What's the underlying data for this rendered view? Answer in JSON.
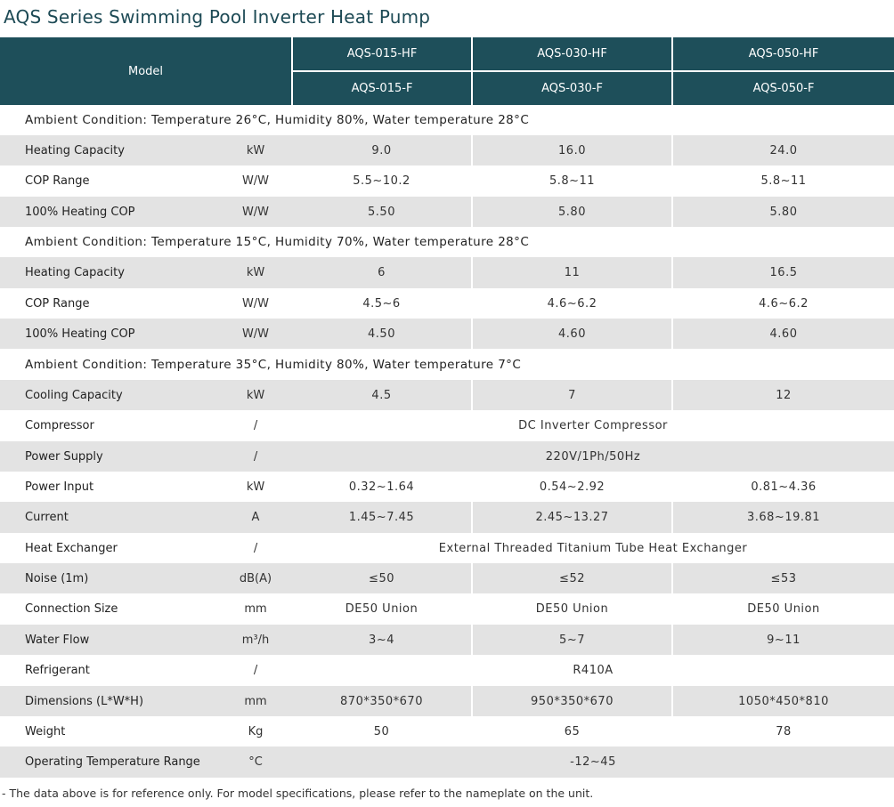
{
  "title": "AQS Series Swimming Pool Inverter Heat Pump",
  "header": {
    "model_label": "Model",
    "models_hf": [
      "AQS-015-HF",
      "AQS-030-HF",
      "AQS-050-HF"
    ],
    "models_f": [
      "AQS-015-F",
      "AQS-030-F",
      "AQS-050-F"
    ]
  },
  "sections": {
    "cond1": "Ambient Condition: Temperature 26°C, Humidity 80%, Water temperature 28°C",
    "cond2": "Ambient Condition: Temperature 15°C, Humidity 70%, Water temperature 28°C",
    "cond3": "Ambient Condition: Temperature 35°C, Humidity 80%, Water temperature 7°C"
  },
  "rows": {
    "hc1": {
      "label": "Heating Capacity",
      "unit": "kW",
      "v": [
        "9.0",
        "16.0",
        "24.0"
      ]
    },
    "cop1": {
      "label": "COP Range",
      "unit": "W/W",
      "v": [
        "5.5~10.2",
        "5.8~11",
        "5.8~11"
      ]
    },
    "hcop1": {
      "label": "100% Heating COP",
      "unit": "W/W",
      "v": [
        "5.50",
        "5.80",
        "5.80"
      ]
    },
    "hc2": {
      "label": "Heating Capacity",
      "unit": "kW",
      "v": [
        "6",
        "11",
        "16.5"
      ]
    },
    "cop2": {
      "label": "COP Range",
      "unit": "W/W",
      "v": [
        "4.5~6",
        "4.6~6.2",
        "4.6~6.2"
      ]
    },
    "hcop2": {
      "label": "100% Heating COP",
      "unit": "W/W",
      "v": [
        "4.50",
        "4.60",
        "4.60"
      ]
    },
    "cool": {
      "label": "Cooling Capacity",
      "unit": "kW",
      "v": [
        "4.5",
        "7",
        "12"
      ]
    },
    "comp": {
      "label": "Compressor",
      "unit": "/",
      "span": "DC Inverter Compressor"
    },
    "psu": {
      "label": "Power Supply",
      "unit": "/",
      "span": "220V/1Ph/50Hz"
    },
    "pin": {
      "label": "Power Input",
      "unit": "kW",
      "v": [
        "0.32~1.64",
        "0.54~2.92",
        "0.81~4.36"
      ]
    },
    "cur": {
      "label": "Current",
      "unit": "A",
      "v": [
        "1.45~7.45",
        "2.45~13.27",
        "3.68~19.81"
      ]
    },
    "hx": {
      "label": "Heat Exchanger",
      "unit": "/",
      "span": "External Threaded Titanium Tube Heat Exchanger"
    },
    "noise": {
      "label": "Noise (1m)",
      "unit": "dB(A)",
      "v": [
        "≤50",
        "≤52",
        "≤53"
      ]
    },
    "conn": {
      "label": "Connection Size",
      "unit": "mm",
      "v": [
        "DE50 Union",
        "DE50 Union",
        "DE50 Union"
      ]
    },
    "flow": {
      "label": "Water Flow",
      "unit": "m³/h",
      "v": [
        "3~4",
        "5~7",
        "9~11"
      ]
    },
    "ref": {
      "label": "Refrigerant",
      "unit": "/",
      "span": "R410A"
    },
    "dim": {
      "label": "Dimensions (L*W*H)",
      "unit": "mm",
      "v": [
        "870*350*670",
        "950*350*670",
        "1050*450*810"
      ]
    },
    "wt": {
      "label": "Weight",
      "unit": "Kg",
      "v": [
        "50",
        "65",
        "78"
      ]
    },
    "temp": {
      "label": "Operating Temperature Range",
      "unit": "°C",
      "span": "-12~45"
    }
  },
  "note": "- The data above is for reference only. For model specifications, please refer to the nameplate on the unit.",
  "colors": {
    "header_bg": "#1e4f5a",
    "shade_bg": "#e3e3e3",
    "title": "#1d4a55"
  }
}
